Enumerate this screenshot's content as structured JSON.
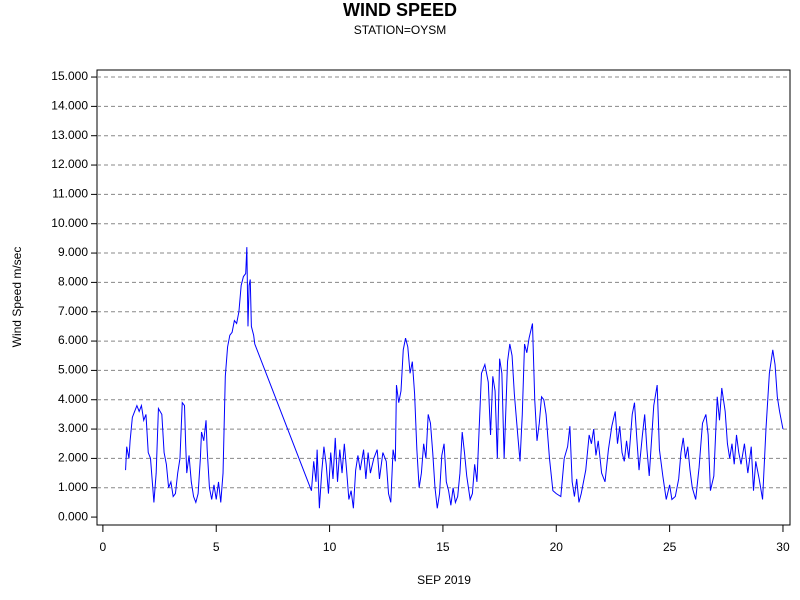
{
  "chart_data": {
    "type": "line",
    "title": "WIND SPEED",
    "subtitle": "STATION=OYSM",
    "y_label": "Wind Speed m/sec",
    "x_label": "SEP 2019",
    "xlim": [
      -0.26,
      30.31
    ],
    "ylim": [
      -0.27,
      15.24
    ],
    "xticks": [
      0,
      5,
      10,
      15,
      20,
      25,
      30
    ],
    "yticks": [
      {
        "value": 0,
        "label": "0.000"
      },
      {
        "value": 1,
        "label": "1.000"
      },
      {
        "value": 2,
        "label": "2.000"
      },
      {
        "value": 3,
        "label": "3.000"
      },
      {
        "value": 4,
        "label": "4.000"
      },
      {
        "value": 5,
        "label": "5.000"
      },
      {
        "value": 6,
        "label": "6.000"
      },
      {
        "value": 7,
        "label": "7.000"
      },
      {
        "value": 8,
        "label": "8.000"
      },
      {
        "value": 9,
        "label": "9.000"
      },
      {
        "value": 10,
        "label": "10.000"
      },
      {
        "value": 11,
        "label": "11.000"
      },
      {
        "value": 12,
        "label": "12.000"
      },
      {
        "value": 13,
        "label": "13.000"
      },
      {
        "value": 14,
        "label": "14.000"
      },
      {
        "value": 15,
        "label": "15.000"
      }
    ],
    "grid": true,
    "color": "#0000ff",
    "x": [
      1.0,
      1.05,
      1.15,
      1.2,
      1.3,
      1.4,
      1.5,
      1.6,
      1.7,
      1.8,
      1.9,
      2.0,
      2.1,
      2.2,
      2.25,
      2.35,
      2.45,
      2.6,
      2.7,
      2.8,
      2.9,
      3.0,
      3.1,
      3.2,
      3.3,
      3.4,
      3.5,
      3.6,
      3.65,
      3.7,
      3.8,
      3.9,
      4.0,
      4.1,
      4.2,
      4.3,
      4.35,
      4.45,
      4.55,
      4.6,
      4.7,
      4.8,
      4.9,
      5.0,
      5.1,
      5.2,
      5.3,
      5.4,
      5.5,
      5.6,
      5.7,
      5.8,
      5.9,
      6.0,
      6.1,
      6.2,
      6.3,
      6.35,
      6.4,
      6.45,
      6.5,
      6.55,
      6.65,
      6.7,
      9.2,
      9.3,
      9.4,
      9.45,
      9.55,
      9.65,
      9.75,
      9.85,
      9.95,
      10.05,
      10.15,
      10.25,
      10.35,
      10.45,
      10.55,
      10.65,
      10.75,
      10.85,
      10.95,
      11.05,
      11.15,
      11.25,
      11.35,
      11.5,
      11.6,
      11.7,
      11.8,
      11.95,
      12.1,
      12.2,
      12.35,
      12.5,
      12.6,
      12.7,
      12.8,
      12.9,
      12.95,
      13.05,
      13.15,
      13.25,
      13.35,
      13.45,
      13.55,
      13.65,
      13.75,
      13.85,
      13.95,
      14.05,
      14.15,
      14.25,
      14.35,
      14.45,
      14.55,
      14.65,
      14.75,
      14.85,
      14.95,
      15.05,
      15.15,
      15.25,
      15.35,
      15.45,
      15.55,
      15.65,
      15.75,
      15.85,
      15.95,
      16.05,
      16.2,
      16.3,
      16.4,
      16.5,
      16.7,
      16.85,
      17.0,
      17.1,
      17.2,
      17.3,
      17.4,
      17.5,
      17.6,
      17.7,
      17.85,
      17.95,
      18.05,
      18.15,
      18.3,
      18.4,
      18.5,
      18.6,
      18.7,
      18.8,
      18.95,
      19.05,
      19.15,
      19.25,
      19.35,
      19.45,
      19.55,
      19.7,
      19.85,
      20.0,
      20.2,
      20.35,
      20.5,
      20.6,
      20.7,
      20.8,
      20.9,
      21.0,
      21.1,
      21.3,
      21.45,
      21.55,
      21.65,
      21.75,
      21.85,
      22.0,
      22.15,
      22.3,
      22.45,
      22.6,
      22.7,
      22.8,
      22.9,
      23.0,
      23.1,
      23.2,
      23.35,
      23.45,
      23.55,
      23.65,
      23.8,
      23.9,
      24.0,
      24.1,
      24.3,
      24.45,
      24.55,
      24.7,
      24.85,
      25.0,
      25.1,
      25.25,
      25.4,
      25.5,
      25.6,
      25.7,
      25.8,
      25.9,
      26.0,
      26.15,
      26.3,
      26.45,
      26.6,
      26.7,
      26.8,
      26.95,
      27.1,
      27.2,
      27.3,
      27.45,
      27.55,
      27.65,
      27.75,
      27.85,
      27.95,
      28.05,
      28.15,
      28.3,
      28.45,
      28.6,
      28.7,
      28.8,
      28.95,
      29.1,
      29.25,
      29.4,
      29.55,
      29.65,
      29.75,
      29.85,
      30.0
    ],
    "values": [
      1.6,
      2.4,
      2.0,
      2.6,
      3.4,
      3.6,
      3.8,
      3.6,
      3.8,
      3.3,
      3.5,
      2.2,
      2.0,
      1.0,
      0.5,
      1.5,
      3.7,
      3.5,
      2.2,
      1.8,
      1.0,
      1.2,
      0.7,
      0.8,
      1.5,
      2.0,
      3.9,
      3.8,
      2.5,
      1.5,
      2.1,
      1.2,
      0.7,
      0.5,
      0.8,
      2.0,
      2.9,
      2.6,
      3.3,
      2.3,
      1.0,
      0.6,
      1.1,
      0.6,
      1.2,
      0.5,
      1.5,
      4.8,
      5.8,
      6.2,
      6.3,
      6.7,
      6.6,
      7.0,
      7.9,
      8.2,
      8.3,
      9.2,
      6.5,
      7.9,
      8.1,
      6.5,
      6.2,
      5.9,
      0.9,
      1.9,
      1.2,
      2.3,
      0.3,
      1.5,
      2.4,
      1.8,
      0.8,
      2.2,
      1.3,
      2.7,
      1.2,
      2.3,
      1.5,
      2.5,
      1.6,
      0.6,
      0.9,
      0.3,
      1.6,
      2.1,
      1.6,
      2.3,
      1.3,
      2.2,
      1.5,
      2.0,
      2.3,
      1.3,
      2.2,
      1.9,
      0.8,
      0.5,
      2.3,
      1.9,
      4.5,
      3.9,
      4.3,
      5.7,
      6.1,
      5.8,
      4.9,
      5.3,
      4.2,
      2.3,
      1.0,
      1.5,
      2.5,
      2.0,
      3.5,
      3.2,
      2.2,
      1.0,
      0.3,
      0.8,
      2.1,
      2.5,
      1.2,
      0.9,
      0.4,
      1.0,
      0.5,
      0.7,
      1.5,
      2.9,
      2.2,
      1.4,
      0.6,
      0.8,
      1.8,
      1.2,
      4.9,
      5.2,
      4.6,
      2.8,
      4.8,
      4.3,
      2.0,
      5.4,
      4.9,
      2.0,
      5.3,
      5.9,
      5.5,
      4.2,
      2.8,
      1.9,
      3.5,
      5.9,
      5.6,
      6.1,
      6.6,
      4.0,
      2.6,
      3.2,
      4.1,
      4.0,
      3.5,
      2.0,
      0.9,
      0.8,
      0.7,
      2.0,
      2.4,
      3.1,
      1.2,
      0.7,
      1.3,
      0.5,
      0.8,
      1.6,
      2.8,
      2.5,
      3.0,
      2.1,
      2.6,
      1.5,
      1.2,
      2.3,
      3.1,
      3.6,
      2.5,
      3.1,
      2.2,
      1.9,
      2.6,
      2.0,
      3.5,
      3.9,
      2.7,
      1.6,
      2.8,
      3.5,
      2.3,
      1.4,
      3.8,
      4.5,
      2.3,
      1.4,
      0.6,
      1.1,
      0.6,
      0.7,
      1.3,
      2.2,
      2.7,
      2.0,
      2.4,
      1.6,
      1.0,
      0.6,
      1.7,
      3.2,
      3.5,
      2.8,
      0.9,
      1.4,
      4.1,
      3.3,
      4.4,
      3.6,
      2.5,
      2.0,
      2.5,
      1.8,
      2.8,
      2.2,
      1.8,
      2.5,
      1.5,
      2.4,
      0.9,
      1.9,
      1.3,
      0.6,
      3.0,
      4.9,
      5.7,
      5.2,
      4.1,
      3.6,
      3.0
    ]
  }
}
